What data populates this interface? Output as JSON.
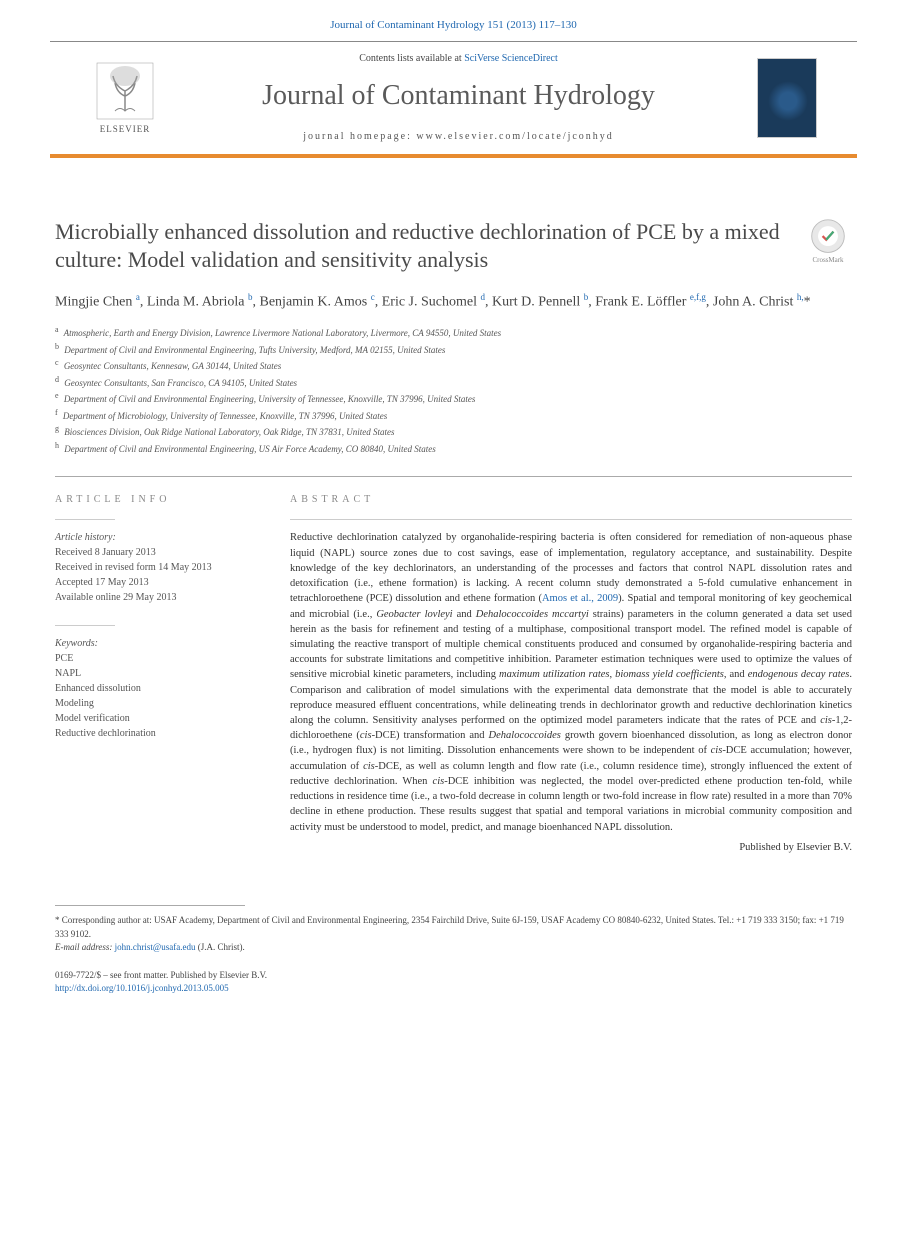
{
  "header": {
    "citation": "Journal of Contaminant Hydrology 151 (2013) 117–130",
    "contents_prefix": "Contents lists available at ",
    "contents_link": "SciVerse ScienceDirect",
    "journal_title": "Journal of Contaminant Hydrology",
    "homepage_label": "journal homepage: ",
    "homepage_url": "www.elsevier.com/locate/jconhyd",
    "elsevier_label": "ELSEVIER"
  },
  "crossmark_label": "CrossMark",
  "title": "Microbially enhanced dissolution and reductive dechlorination of PCE by a mixed culture: Model validation and sensitivity analysis",
  "authors_html": "Mingjie Chen <sup>a</sup>, Linda M. Abriola <sup>b</sup>, Benjamin K. Amos <sup>c</sup>, Eric J. Suchomel <sup>d</sup>, Kurt D. Pennell <sup>b</sup>, Frank E. Löffler <sup>e,f,g</sup>, John A. Christ <sup>h,</sup><span class='star'>*</span>",
  "affiliations": [
    {
      "sup": "a",
      "text": "Atmospheric, Earth and Energy Division, Lawrence Livermore National Laboratory, Livermore, CA 94550, United States"
    },
    {
      "sup": "b",
      "text": "Department of Civil and Environmental Engineering, Tufts University, Medford, MA 02155, United States"
    },
    {
      "sup": "c",
      "text": "Geosyntec Consultants, Kennesaw, GA 30144, United States"
    },
    {
      "sup": "d",
      "text": "Geosyntec Consultants, San Francisco, CA 94105, United States"
    },
    {
      "sup": "e",
      "text": "Department of Civil and Environmental Engineering, University of Tennessee, Knoxville, TN 37996, United States"
    },
    {
      "sup": "f",
      "text": "Department of Microbiology, University of Tennessee, Knoxville, TN 37996, United States"
    },
    {
      "sup": "g",
      "text": "Biosciences Division, Oak Ridge National Laboratory, Oak Ridge, TN 37831, United States"
    },
    {
      "sup": "h",
      "text": "Department of Civil and Environmental Engineering, US Air Force Academy, CO 80840, United States"
    }
  ],
  "info": {
    "heading": "ARTICLE INFO",
    "history_label": "Article history:",
    "history": [
      "Received 8 January 2013",
      "Received in revised form 14 May 2013",
      "Accepted 17 May 2013",
      "Available online 29 May 2013"
    ],
    "keywords_label": "Keywords:",
    "keywords": [
      "PCE",
      "NAPL",
      "Enhanced dissolution",
      "Modeling",
      "Model verification",
      "Reductive dechlorination"
    ]
  },
  "abstract": {
    "heading": "ABSTRACT",
    "text_parts": [
      "Reductive dechlorination catalyzed by organohalide-respiring bacteria is often considered for remediation of non-aqueous phase liquid (NAPL) source zones due to cost savings, ease of implementation, regulatory acceptance, and sustainability. Despite knowledge of the key dechlorinators, an understanding of the processes and factors that control NAPL dissolution rates and detoxification (i.e., ethene formation) is lacking. A recent column study demonstrated a 5-fold cumulative enhancement in tetrachloroethene (PCE) dissolution and ethene formation (",
      "Amos et al., 2009",
      "). Spatial and temporal monitoring of key geochemical and microbial (i.e., <em>Geobacter lovleyi</em> and <em>Dehalococcoides mccartyi</em> strains) parameters in the column generated a data set used herein as the basis for refinement and testing of a multiphase, compositional transport model. The refined model is capable of simulating the reactive transport of multiple chemical constituents produced and consumed by organohalide-respiring bacteria and accounts for substrate limitations and competitive inhibition. Parameter estimation techniques were used to optimize the values of sensitive microbial kinetic parameters, including <em>maximum utilization rates</em>, <em>biomass yield coefficients</em>, and <em>endogenous decay rates</em>. Comparison and calibration of model simulations with the experimental data demonstrate that the model is able to accurately reproduce measured effluent concentrations, while delineating trends in dechlorinator growth and reductive dechlorination kinetics along the column. Sensitivity analyses performed on the optimized model parameters indicate that the rates of PCE and <em>cis</em>-1,2-dichloroethene (<em>cis</em>-DCE) transformation and <em>Dehalococcoides</em> growth govern bioenhanced dissolution, as long as electron donor (i.e., hydrogen flux) is not limiting. Dissolution enhancements were shown to be independent of <em>cis</em>-DCE accumulation; however, accumulation of <em>cis</em>-DCE, as well as column length and flow rate (i.e., column residence time), strongly influenced the extent of reductive dechlorination. When <em>cis</em>-DCE inhibition was neglected, the model over-predicted ethene production ten-fold, while reductions in residence time (i.e., a two-fold decrease in column length or two-fold increase in flow rate) resulted in a more than 70% decline in ethene production. These results suggest that spatial and temporal variations in microbial community composition and activity must be understood to model, predict, and manage bioenhanced NAPL dissolution."
    ],
    "publisher": "Published by Elsevier B.V."
  },
  "footnote": {
    "corresponding": "* Corresponding author at: USAF Academy, Department of Civil and Environmental Engineering, 2354 Fairchild Drive, Suite 6J-159, USAF Academy CO 80840-6232, United States. Tel.: +1 719 333 3150; fax: +1 719 333 9102.",
    "email_label": "E-mail address: ",
    "email": "john.christ@usafa.edu",
    "email_suffix": " (J.A. Christ)."
  },
  "bottom": {
    "issn": "0169-7722/$ – see front matter. Published by Elsevier B.V.",
    "doi": "http://dx.doi.org/10.1016/j.jconhyd.2013.05.005"
  },
  "colors": {
    "link": "#2068b0",
    "accent_bar": "#e78b2f",
    "heading_gray": "#888888",
    "text": "#333333"
  }
}
